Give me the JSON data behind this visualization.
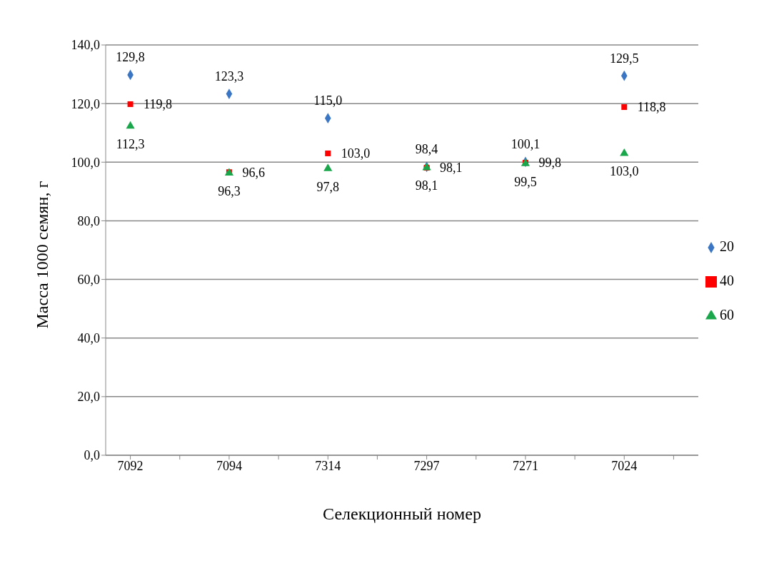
{
  "chart_data": {
    "type": "scatter",
    "xlabel": "Селекционный номер",
    "ylabel": "Масса 1000 семян,  г",
    "categories": [
      "7092",
      null,
      "7094",
      null,
      "7314",
      null,
      "7297",
      null,
      "7271",
      null,
      "7024",
      null
    ],
    "series": [
      {
        "name": "20",
        "color": "#3b76c4",
        "marker": "diamond",
        "values": [
          129.8,
          null,
          123.3,
          null,
          115.0,
          null,
          98.4,
          null,
          100.1,
          null,
          129.5,
          null
        ],
        "value_labels": [
          "129,8",
          null,
          "123,3",
          null,
          "115,0",
          null,
          "98,4",
          null,
          "100,1",
          null,
          "129,5",
          null
        ]
      },
      {
        "name": "40",
        "color": "#ff0000",
        "marker": "square",
        "values": [
          119.8,
          null,
          96.6,
          null,
          103.0,
          null,
          98.1,
          null,
          99.8,
          null,
          118.8,
          null
        ],
        "value_labels": [
          "119,8",
          null,
          "96,6",
          null,
          "103,0",
          null,
          "98,1",
          null,
          "99,8",
          null,
          "118,8",
          null
        ]
      },
      {
        "name": "60",
        "color": "#1aa64a",
        "marker": "triangle",
        "values": [
          112.3,
          null,
          96.3,
          null,
          97.8,
          null,
          98.1,
          null,
          99.5,
          null,
          103.0,
          null
        ],
        "value_labels": [
          "112,3",
          null,
          "96,3",
          null,
          "97,8",
          null,
          "98,1",
          null,
          "99,5",
          null,
          "103,0",
          null
        ]
      }
    ],
    "ylim": [
      0,
      140
    ],
    "yticks": [
      {
        "value": 0,
        "label": "0,0"
      },
      {
        "value": 20,
        "label": "20,0"
      },
      {
        "value": 40,
        "label": "40,0"
      },
      {
        "value": 60,
        "label": "60,0"
      },
      {
        "value": 80,
        "label": "80,0"
      },
      {
        "value": 100,
        "label": "100,0"
      },
      {
        "value": 120,
        "label": "120,0"
      },
      {
        "value": 140,
        "label": "140,0"
      }
    ],
    "grid": "y",
    "legend": "right"
  }
}
